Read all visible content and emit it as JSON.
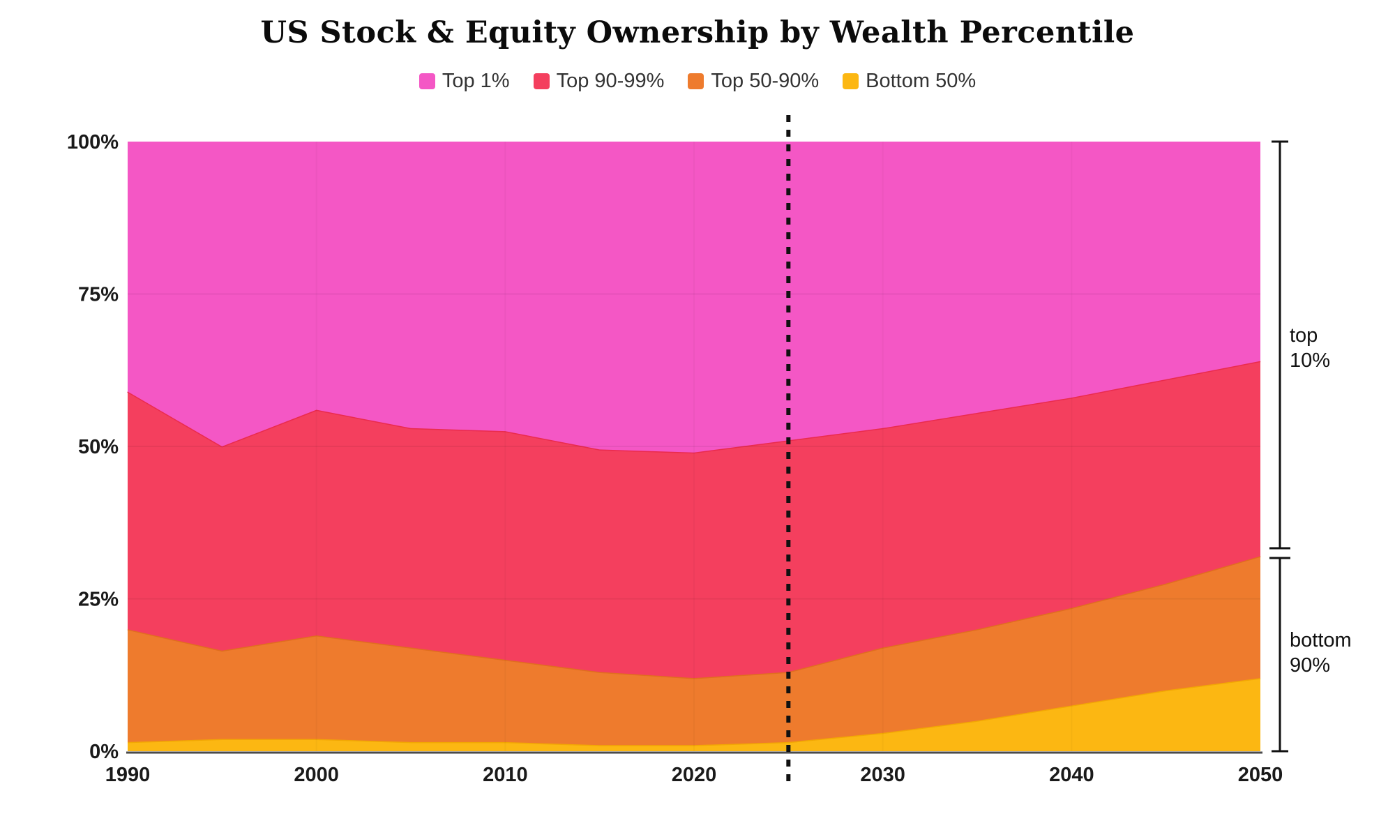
{
  "title": "US Stock & Equity Ownership by Wealth Percentile",
  "legend": {
    "items": [
      {
        "label": "Top 1%",
        "color": "#F457C5"
      },
      {
        "label": "Top 90-99%",
        "color": "#F43F5E"
      },
      {
        "label": "Top 50-90%",
        "color": "#EE7B2D"
      },
      {
        "label": "Bottom 50%",
        "color": "#FCB712"
      }
    ]
  },
  "chart_data": {
    "type": "area",
    "stacked": true,
    "x": [
      1990,
      1995,
      2000,
      2005,
      2010,
      2015,
      2020,
      2025,
      2030,
      2035,
      2040,
      2045,
      2050
    ],
    "series": [
      {
        "name": "Bottom 50%",
        "color": "#FCB712",
        "edge": "#F2A703",
        "values": [
          1.5,
          2,
          2,
          1.5,
          1.5,
          1,
          1,
          1.5,
          3,
          5,
          7.5,
          10,
          12
        ]
      },
      {
        "name": "Top 50-90%",
        "color": "#EE7B2D",
        "edge": "#E06E1E",
        "values": [
          18.5,
          14.5,
          17,
          15.5,
          13.5,
          12,
          11,
          11.5,
          14,
          15,
          16,
          17.5,
          20
        ]
      },
      {
        "name": "Top 90-99%",
        "color": "#F43F5E",
        "edge": "#EA2B4D",
        "values": [
          39,
          33.5,
          37,
          36,
          37.5,
          36.5,
          37,
          38,
          36,
          35.5,
          34.5,
          33.5,
          32
        ]
      },
      {
        "name": "Top 1%",
        "color": "#F457C5",
        "edge": "#F457C5",
        "values": [
          41,
          50,
          44,
          47,
          47.5,
          50.5,
          51,
          49,
          47,
          44.5,
          42,
          39,
          36
        ]
      }
    ],
    "title": "US Stock & Equity Ownership by Wealth Percentile",
    "xlabel": "",
    "ylabel": "",
    "xlim": [
      1990,
      2050
    ],
    "ylim": [
      0,
      100
    ],
    "grid": "faint",
    "legend_position": "top",
    "y_ticks": [
      {
        "value": 0,
        "label": "0%"
      },
      {
        "value": 25,
        "label": "25%"
      },
      {
        "value": 50,
        "label": "50%"
      },
      {
        "value": 75,
        "label": "75%"
      },
      {
        "value": 100,
        "label": "100%"
      }
    ],
    "x_ticks": [
      {
        "value": 1990,
        "label": "1990"
      },
      {
        "value": 2000,
        "label": "2000"
      },
      {
        "value": 2010,
        "label": "2010"
      },
      {
        "value": 2020,
        "label": "2020"
      },
      {
        "value": 2030,
        "label": "2030"
      },
      {
        "value": 2040,
        "label": "2040"
      },
      {
        "value": 2050,
        "label": "2050"
      }
    ],
    "annotations": {
      "dotted_vertical_line": {
        "x": 2025,
        "color": "#111111"
      },
      "brackets": [
        {
          "label_lines": [
            "top",
            "10%"
          ],
          "from_pct": 100,
          "to_pct": 32.5
        },
        {
          "label_lines": [
            "bottom",
            "90%"
          ],
          "from_pct": 32.5,
          "to_pct": 0
        }
      ]
    }
  }
}
